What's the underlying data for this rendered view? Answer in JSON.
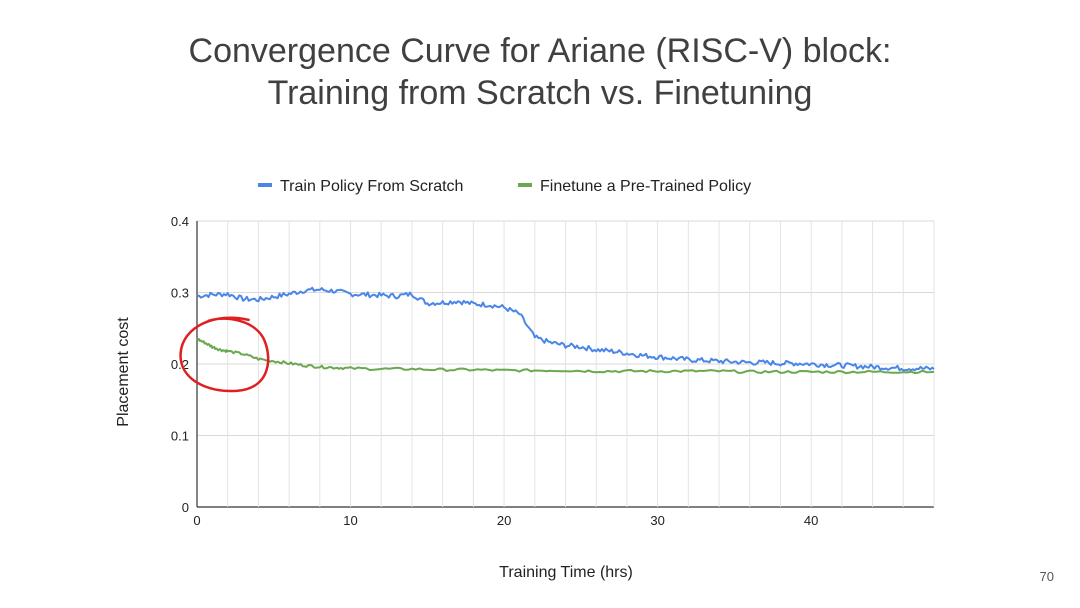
{
  "slide": {
    "title_line1": "Convergence Curve for Ariane (RISC-V) block:",
    "title_line2": "Training from Scratch vs. Finetuning",
    "page_number": "70"
  },
  "chart_data": {
    "type": "line",
    "title": "",
    "xlabel": "Training Time (hrs)",
    "ylabel": "Placement cost",
    "xlim": [
      0,
      48
    ],
    "ylim": [
      0,
      0.4
    ],
    "x_ticks": [
      "0",
      "10",
      "20",
      "30",
      "40"
    ],
    "y_ticks": [
      "0",
      "0.1",
      "0.2",
      "0.3",
      "0.4"
    ],
    "grid": true,
    "legend_position": "top",
    "series": [
      {
        "name": "Train Policy From Scratch",
        "color": "#4a86e8",
        "x": [
          0,
          1,
          2,
          3,
          4,
          5,
          6,
          7,
          8,
          9,
          10,
          11,
          12,
          13,
          14,
          15,
          16,
          17,
          18,
          19,
          20,
          21,
          22,
          23,
          24,
          25,
          26,
          27,
          28,
          29,
          30,
          31,
          32,
          33,
          34,
          35,
          36,
          37,
          38,
          39,
          40,
          41,
          42,
          43,
          44,
          45,
          46,
          47,
          48
        ],
        "y": [
          0.295,
          0.297,
          0.298,
          0.291,
          0.29,
          0.294,
          0.298,
          0.303,
          0.304,
          0.302,
          0.298,
          0.297,
          0.296,
          0.295,
          0.298,
          0.285,
          0.286,
          0.288,
          0.284,
          0.283,
          0.279,
          0.27,
          0.237,
          0.23,
          0.226,
          0.224,
          0.22,
          0.218,
          0.215,
          0.212,
          0.21,
          0.208,
          0.206,
          0.205,
          0.204,
          0.203,
          0.202,
          0.202,
          0.201,
          0.201,
          0.2,
          0.199,
          0.198,
          0.197,
          0.196,
          0.195,
          0.194,
          0.194,
          0.193
        ]
      },
      {
        "name": "Finetune a Pre-Trained Policy",
        "color": "#6aa84f",
        "x": [
          0,
          0.5,
          1,
          1.5,
          2,
          3,
          4,
          5,
          6,
          7,
          8,
          9,
          10,
          12,
          14,
          16,
          18,
          20,
          22,
          24,
          26,
          28,
          30,
          32,
          34,
          36,
          38,
          40,
          42,
          44,
          46,
          48
        ],
        "y": [
          0.235,
          0.23,
          0.224,
          0.22,
          0.218,
          0.214,
          0.207,
          0.204,
          0.201,
          0.198,
          0.196,
          0.195,
          0.194,
          0.193,
          0.193,
          0.192,
          0.192,
          0.191,
          0.191,
          0.191,
          0.19,
          0.19,
          0.19,
          0.19,
          0.19,
          0.189,
          0.189,
          0.189,
          0.189,
          0.189,
          0.189,
          0.189
        ]
      }
    ]
  },
  "annotation": {
    "type": "hand-drawn-circle",
    "color": "#e02020",
    "center_x": 1.8,
    "center_y": 0.21
  }
}
